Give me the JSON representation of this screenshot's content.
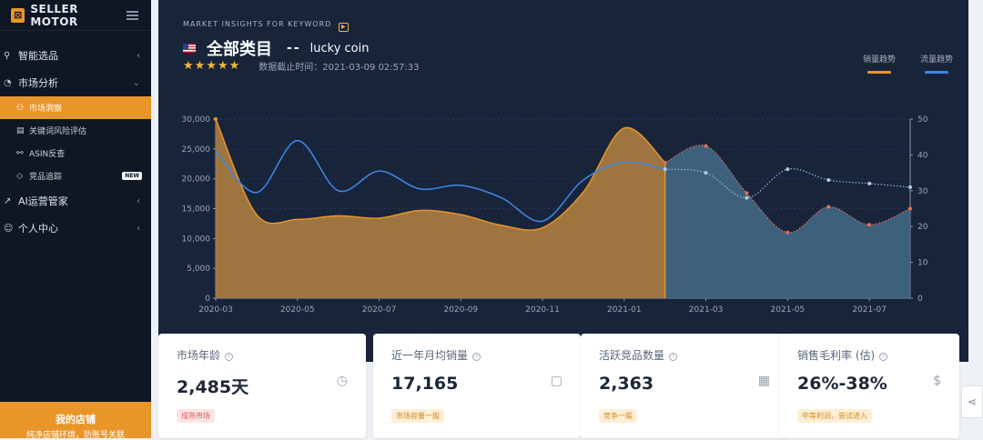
{
  "sidebar": {
    "logo": "SELLER MOTOR",
    "items": [
      {
        "label": "智能选品"
      },
      {
        "label": "市场分析"
      },
      {
        "label": "AI运营管家"
      },
      {
        "label": "个人中心"
      }
    ],
    "sub_items": [
      {
        "label": "市场洞察"
      },
      {
        "label": "关键词风险评估"
      },
      {
        "label": "ASIN反查"
      },
      {
        "label": "竞品追踪",
        "badge": "NEW"
      }
    ],
    "store": {
      "title": "我的店铺",
      "subtitle": "纯净店铺环境，防账号关联"
    }
  },
  "header": {
    "section_label": "MARKET INSIGHTS FOR KEYWORD",
    "category": "全部类目",
    "separator": "--",
    "keyword": "lucky coin",
    "rating": 5,
    "updated": "数据截止时间：2021-03-09 02:57:33"
  },
  "legend": [
    {
      "label": "销量趋势",
      "color": "#e8952a"
    },
    {
      "label": "流量趋势",
      "color": "#3f84e0"
    }
  ],
  "chart_data": {
    "type": "area",
    "x": [
      "2020-03",
      "2020-04",
      "2020-05",
      "2020-06",
      "2020-07",
      "2020-08",
      "2020-09",
      "2020-10",
      "2020-11",
      "2020-12",
      "2021-01",
      "2021-02",
      "2021-03",
      "2021-04",
      "2021-05",
      "2021-06",
      "2021-07",
      "2021-08"
    ],
    "x_ticks": [
      "2020-03",
      "2020-05",
      "2020-07",
      "2020-09",
      "2020-11",
      "2021-01",
      "2021-03",
      "2021-05",
      "2021-07"
    ],
    "y_ticks": [
      "0",
      "5,000",
      "10,000",
      "15,000",
      "20,000",
      "25,000",
      "30,000"
    ],
    "y2_ticks": [
      "0",
      "10",
      "20",
      "30",
      "40",
      "50"
    ],
    "ylim": [
      0,
      30000
    ],
    "y2lim": [
      0,
      50
    ],
    "forecast_start": "2021-02",
    "series": [
      {
        "name": "销量趋势",
        "axis": "left",
        "color": "#e8952a",
        "values": [
          30000,
          14000,
          13200,
          13800,
          13400,
          14700,
          14000,
          12200,
          11800,
          17800,
          28500,
          22700,
          25500,
          17600,
          11000,
          15300,
          12300,
          15000
        ]
      },
      {
        "name": "流量趋势",
        "axis": "right",
        "color": "#3f84e0",
        "values": [
          41,
          29.5,
          44,
          30,
          35.5,
          30.5,
          31.5,
          28,
          21.5,
          33,
          38,
          36,
          35,
          28,
          36,
          33,
          32,
          31
        ]
      }
    ]
  },
  "cards": [
    {
      "title": "市场年龄",
      "value": "2,485天",
      "icon": "clock-icon",
      "glyph": "◷",
      "tag": "成熟市场",
      "tag_bg": "#fde4e4",
      "tag_fg": "#d55757"
    },
    {
      "title": "近一年月均销量",
      "value": "17,165",
      "icon": "shopping-bag-icon",
      "glyph": "▢",
      "tag": "市场容量一般",
      "tag_bg": "#fdefd6",
      "tag_fg": "#d08a1c"
    },
    {
      "title": "活跃竞品数量",
      "value": "2,363",
      "icon": "grid-icon",
      "glyph": "▦",
      "tag": "竞争一般",
      "tag_bg": "#fdefd6",
      "tag_fg": "#d08a1c"
    },
    {
      "title": "销售毛利率 (估)",
      "value": "26%-38%",
      "icon": "dollar-icon",
      "glyph": "$",
      "tag": "中等利润，尝试进入",
      "tag_bg": "#fdefd6",
      "tag_fg": "#d08a1c"
    }
  ]
}
